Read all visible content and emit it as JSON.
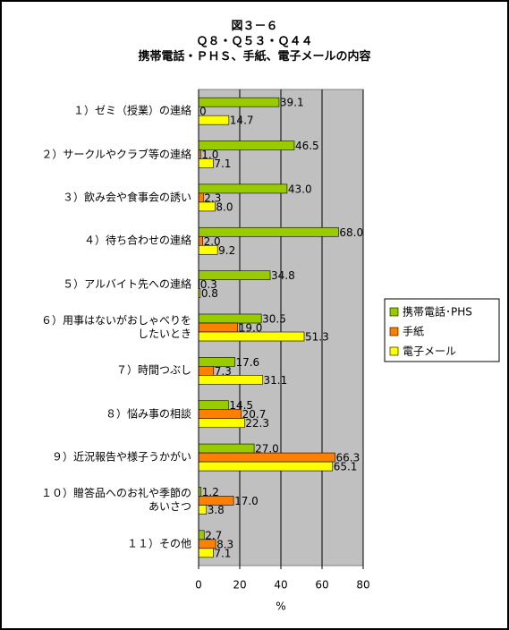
{
  "chart_data": {
    "type": "hbar",
    "title": [
      "図３－６",
      "Ｑ８・Ｑ５３・Ｑ４４",
      "携帯電話・ＰＨＳ、手紙、電子メールの内容"
    ],
    "x_label": "%",
    "categories": [
      "１）ゼミ（授業）の連絡",
      "２）サークルやクラブ等の連絡",
      "３）飲み会や食事会の誘い",
      "４）待ち合わせの連絡",
      "５）アルバイト先への連絡",
      "６）用事はないがおしゃべりを\nしたいとき",
      "７）時間つぶし",
      "８）悩み事の相談",
      "９）近況報告や様子うかがい",
      "１０）贈答品へのお礼や季節の\nあいさつ",
      "１１）その他"
    ],
    "series": [
      {
        "name": "携帯電話･PHS",
        "color": "#99cc00",
        "values": [
          39.1,
          46.5,
          43.0,
          68.0,
          34.8,
          30.5,
          17.6,
          14.5,
          27.0,
          1.2,
          2.7
        ],
        "value_labels": [
          "39.1",
          "46.5",
          "43.0",
          "68.0",
          "34.8",
          "30.5",
          "17.6",
          "14.5",
          "27.0",
          "1.2",
          "2.7"
        ]
      },
      {
        "name": "手紙",
        "color": "#ff8000",
        "values": [
          0,
          1.0,
          2.3,
          2.0,
          0.3,
          19.0,
          7.3,
          20.7,
          66.3,
          17.0,
          8.3
        ],
        "value_labels": [
          "0",
          "1.0",
          "2.3",
          "2.0",
          "0.3",
          "19.0",
          "7.3",
          "20.7",
          "66.3",
          "17.0",
          "8.3"
        ]
      },
      {
        "name": "電子メール",
        "color": "#ffff00",
        "values": [
          14.7,
          7.1,
          8.0,
          9.2,
          0.8,
          51.3,
          31.1,
          22.3,
          65.1,
          3.8,
          7.1
        ],
        "value_labels": [
          "14.7",
          "7.1",
          "8.0",
          "9.2",
          "0.8",
          "51.3",
          "31.1",
          "22.3",
          "65.1",
          "3.8",
          "7.1"
        ]
      }
    ],
    "xlim": [
      0,
      80
    ],
    "xticks": [
      0,
      20,
      40,
      60,
      80
    ],
    "grid": true,
    "legend": "right"
  }
}
